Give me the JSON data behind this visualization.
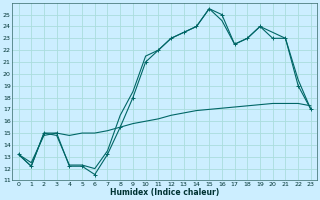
{
  "xlabel": "Humidex (Indice chaleur)",
  "bg_color": "#cceeff",
  "grid_color": "#aadddd",
  "line_color": "#006666",
  "xlim": [
    -0.5,
    23.5
  ],
  "ylim": [
    11,
    26
  ],
  "yticks": [
    11,
    12,
    13,
    14,
    15,
    16,
    17,
    18,
    19,
    20,
    21,
    22,
    23,
    24,
    25
  ],
  "xticks": [
    0,
    1,
    2,
    3,
    4,
    5,
    6,
    7,
    8,
    9,
    10,
    11,
    12,
    13,
    14,
    15,
    16,
    17,
    18,
    19,
    20,
    21,
    22,
    23
  ],
  "line_jagged_x": [
    0,
    1,
    2,
    3,
    4,
    5,
    6,
    7,
    8,
    9,
    10,
    11,
    12,
    13,
    14,
    15,
    16,
    17,
    18,
    19,
    20,
    21,
    22,
    23
  ],
  "line_jagged_y": [
    13.2,
    12.2,
    15.0,
    15.0,
    12.2,
    12.2,
    11.5,
    13.2,
    15.5,
    18.0,
    21.0,
    22.0,
    23.0,
    23.5,
    24.0,
    25.5,
    25.0,
    22.5,
    23.0,
    24.0,
    23.0,
    23.0,
    19.0,
    17.0
  ],
  "line_smooth_x": [
    0,
    1,
    2,
    3,
    4,
    5,
    6,
    7,
    8,
    9,
    10,
    11,
    12,
    13,
    14,
    15,
    16,
    17,
    18,
    19,
    20,
    21,
    22,
    23
  ],
  "line_smooth_y": [
    13.2,
    12.2,
    15.0,
    14.8,
    12.3,
    12.3,
    12.0,
    13.5,
    16.5,
    18.5,
    21.5,
    22.0,
    23.0,
    23.5,
    24.0,
    25.5,
    24.5,
    22.5,
    23.0,
    24.0,
    23.5,
    23.0,
    19.5,
    17.0
  ],
  "line_lower_x": [
    0,
    1,
    2,
    3,
    4,
    5,
    6,
    7,
    8,
    9,
    10,
    11,
    12,
    13,
    14,
    15,
    16,
    17,
    18,
    19,
    20,
    21,
    22,
    23
  ],
  "line_lower_y": [
    13.2,
    12.5,
    14.8,
    15.0,
    14.8,
    15.0,
    15.0,
    15.2,
    15.5,
    15.8,
    16.0,
    16.2,
    16.5,
    16.7,
    16.9,
    17.0,
    17.1,
    17.2,
    17.3,
    17.4,
    17.5,
    17.5,
    17.5,
    17.3
  ]
}
